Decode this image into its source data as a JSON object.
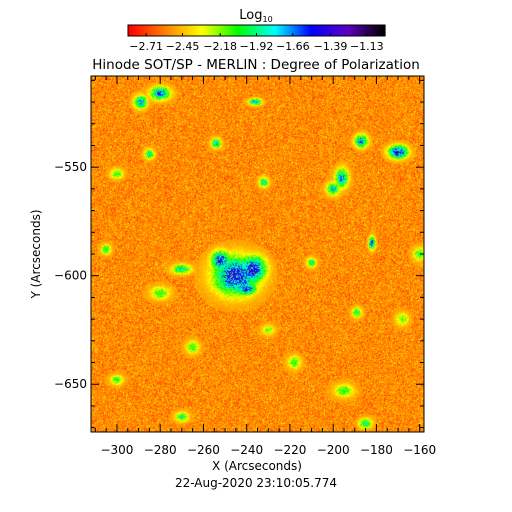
{
  "chart_data": {
    "type": "heatmap",
    "title": "Hinode SOT/SP - MERLIN : Degree of Polarization",
    "xlabel": "X (Arcseconds)",
    "ylabel": "Y (Arcseconds)",
    "timestamp": "22-Aug-2020 23:10:05.774",
    "xlim": [
      -312,
      -158
    ],
    "ylim": [
      -672,
      -508
    ],
    "x_ticks": [
      -300,
      -280,
      -260,
      -240,
      -220,
      -200,
      -180,
      -160
    ],
    "y_ticks": [
      -550,
      -600,
      -650
    ],
    "colorbar": {
      "title_main": "Log",
      "title_sub": "10",
      "range": [
        -2.84,
        -1.0
      ],
      "tick_values": [
        -2.71,
        -2.45,
        -2.18,
        -1.92,
        -1.66,
        -1.39,
        -1.13
      ],
      "tick_labels": [
        "−2.71",
        "−2.45",
        "−2.18",
        "−1.92",
        "−1.66",
        "−1.39",
        "−1.13"
      ],
      "colormap": [
        "#ff0000",
        "#ff8000",
        "#ffff00",
        "#00ff00",
        "#00ffff",
        "#0000ff",
        "#6000c0",
        "#000000"
      ]
    },
    "background_level": -2.55,
    "features": [
      {
        "x": -245,
        "y": -600,
        "sx": 7,
        "sy": 6,
        "level": -1.35
      },
      {
        "x": -237,
        "y": -597,
        "sx": 4,
        "sy": 4,
        "level": -1.3
      },
      {
        "x": -252,
        "y": -593,
        "sx": 3,
        "sy": 3,
        "level": -1.4
      },
      {
        "x": -240,
        "y": -606,
        "sx": 3,
        "sy": 2,
        "level": -1.45
      },
      {
        "x": -170,
        "y": -543,
        "sx": 3,
        "sy": 2,
        "level": -1.3
      },
      {
        "x": -187,
        "y": -538,
        "sx": 2,
        "sy": 2,
        "level": -1.55
      },
      {
        "x": -196,
        "y": -555,
        "sx": 2,
        "sy": 3,
        "level": -1.6
      },
      {
        "x": -200,
        "y": -560,
        "sx": 2,
        "sy": 2,
        "level": -1.7
      },
      {
        "x": -182,
        "y": -585,
        "sx": 1,
        "sy": 2,
        "level": -1.5
      },
      {
        "x": -280,
        "y": -516,
        "sx": 3,
        "sy": 2,
        "level": -1.5
      },
      {
        "x": -289,
        "y": -520,
        "sx": 2,
        "sy": 2,
        "level": -1.6
      },
      {
        "x": -236,
        "y": -520,
        "sx": 2,
        "sy": 1,
        "level": -1.6
      },
      {
        "x": -254,
        "y": -539,
        "sx": 1.5,
        "sy": 1.5,
        "level": -1.7
      },
      {
        "x": -285,
        "y": -544,
        "sx": 1.5,
        "sy": 1.5,
        "level": -1.8
      },
      {
        "x": -270,
        "y": -597,
        "sx": 3,
        "sy": 1.5,
        "level": -1.8
      },
      {
        "x": -232,
        "y": -557,
        "sx": 1.5,
        "sy": 1.5,
        "level": -1.8
      },
      {
        "x": -210,
        "y": -594,
        "sx": 1.5,
        "sy": 1.5,
        "level": -1.9
      },
      {
        "x": -189,
        "y": -617,
        "sx": 1.5,
        "sy": 1.5,
        "level": -1.9
      },
      {
        "x": -305,
        "y": -588,
        "sx": 1.5,
        "sy": 1.5,
        "level": -1.9
      },
      {
        "x": -300,
        "y": -553,
        "sx": 2,
        "sy": 1.5,
        "level": -2.0
      },
      {
        "x": -265,
        "y": -633,
        "sx": 2,
        "sy": 2,
        "level": -2.0
      },
      {
        "x": -218,
        "y": -640,
        "sx": 2,
        "sy": 2,
        "level": -2.0
      },
      {
        "x": -195,
        "y": -653,
        "sx": 3,
        "sy": 2,
        "level": -2.0
      },
      {
        "x": -185,
        "y": -668,
        "sx": 2,
        "sy": 1.5,
        "level": -1.8
      },
      {
        "x": -270,
        "y": -665,
        "sx": 2,
        "sy": 1.5,
        "level": -1.9
      },
      {
        "x": -300,
        "y": -648,
        "sx": 2,
        "sy": 1.5,
        "level": -2.0
      },
      {
        "x": -280,
        "y": -608,
        "sx": 3,
        "sy": 2,
        "level": -2.0
      },
      {
        "x": -230,
        "y": -625,
        "sx": 2,
        "sy": 1.5,
        "level": -2.1
      },
      {
        "x": -160,
        "y": -590,
        "sx": 2,
        "sy": 2,
        "level": -2.0
      },
      {
        "x": -168,
        "y": -620,
        "sx": 2,
        "sy": 2,
        "level": -2.1
      }
    ]
  }
}
